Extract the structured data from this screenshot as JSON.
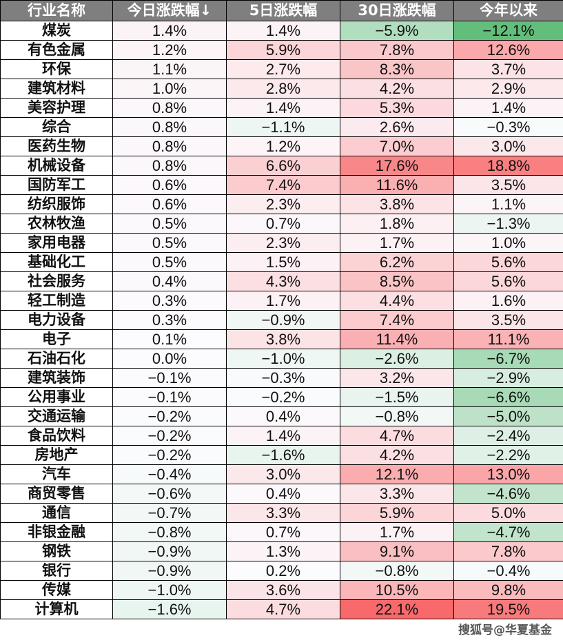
{
  "chart_data": {
    "type": "heatmap",
    "columns": [
      "行业名称",
      "今日涨跌幅↓",
      "5日涨跌幅",
      "30日涨跌幅",
      "今年以来"
    ],
    "color_scale": {
      "negative": "#63be7b",
      "zero": "#fcfcff",
      "positive": "#f8696b"
    },
    "rows": [
      {
        "name": "煤炭",
        "values": [
          "1.4%",
          "1.4%",
          "−5.9%",
          "−12.1%"
        ]
      },
      {
        "name": "有色金属",
        "values": [
          "1.2%",
          "5.9%",
          "7.8%",
          "12.6%"
        ]
      },
      {
        "name": "环保",
        "values": [
          "1.1%",
          "2.7%",
          "8.3%",
          "3.7%"
        ]
      },
      {
        "name": "建筑材料",
        "values": [
          "1.0%",
          "2.8%",
          "4.2%",
          "2.9%"
        ]
      },
      {
        "name": "美容护理",
        "values": [
          "0.8%",
          "1.4%",
          "5.3%",
          "1.4%"
        ]
      },
      {
        "name": "综合",
        "values": [
          "0.8%",
          "−1.1%",
          "2.6%",
          "−0.3%"
        ]
      },
      {
        "name": "医药生物",
        "values": [
          "0.8%",
          "1.2%",
          "7.0%",
          "3.0%"
        ]
      },
      {
        "name": "机械设备",
        "values": [
          "0.8%",
          "6.6%",
          "17.6%",
          "18.8%"
        ]
      },
      {
        "name": "国防军工",
        "values": [
          "0.6%",
          "7.4%",
          "11.6%",
          "3.5%"
        ]
      },
      {
        "name": "纺织服饰",
        "values": [
          "0.6%",
          "2.3%",
          "3.8%",
          "1.1%"
        ]
      },
      {
        "name": "农林牧渔",
        "values": [
          "0.5%",
          "0.7%",
          "1.8%",
          "−1.3%"
        ]
      },
      {
        "name": "家用电器",
        "values": [
          "0.5%",
          "2.3%",
          "1.7%",
          "1.0%"
        ]
      },
      {
        "name": "基础化工",
        "values": [
          "0.5%",
          "1.5%",
          "6.2%",
          "5.6%"
        ]
      },
      {
        "name": "社会服务",
        "values": [
          "0.4%",
          "4.3%",
          "8.5%",
          "5.6%"
        ]
      },
      {
        "name": "轻工制造",
        "values": [
          "0.3%",
          "1.7%",
          "4.4%",
          "1.6%"
        ]
      },
      {
        "name": "电力设备",
        "values": [
          "0.3%",
          "−0.9%",
          "7.4%",
          "3.5%"
        ]
      },
      {
        "name": "电子",
        "values": [
          "0.1%",
          "3.8%",
          "11.4%",
          "11.1%"
        ]
      },
      {
        "name": "石油石化",
        "values": [
          "0.0%",
          "−1.0%",
          "−2.6%",
          "−6.7%"
        ]
      },
      {
        "name": "建筑装饰",
        "values": [
          "−0.1%",
          "−0.3%",
          "3.2%",
          "−2.9%"
        ]
      },
      {
        "name": "公用事业",
        "values": [
          "−0.1%",
          "−0.2%",
          "−1.5%",
          "−6.6%"
        ]
      },
      {
        "name": "交通运输",
        "values": [
          "−0.2%",
          "0.4%",
          "−0.8%",
          "−5.0%"
        ]
      },
      {
        "name": "食品饮料",
        "values": [
          "−0.2%",
          "1.4%",
          "4.7%",
          "−2.4%"
        ]
      },
      {
        "name": "房地产",
        "values": [
          "−0.2%",
          "−1.6%",
          "4.2%",
          "−2.2%"
        ]
      },
      {
        "name": "汽车",
        "values": [
          "−0.4%",
          "3.0%",
          "12.1%",
          "13.0%"
        ]
      },
      {
        "name": "商贸零售",
        "values": [
          "−0.6%",
          "0.4%",
          "3.3%",
          "−4.6%"
        ]
      },
      {
        "name": "通信",
        "values": [
          "−0.7%",
          "3.3%",
          "5.9%",
          "5.0%"
        ]
      },
      {
        "name": "非银金融",
        "values": [
          "−0.8%",
          "0.7%",
          "1.7%",
          "−4.7%"
        ]
      },
      {
        "name": "钢铁",
        "values": [
          "−0.9%",
          "1.3%",
          "9.1%",
          "7.8%"
        ]
      },
      {
        "name": "银行",
        "values": [
          "−0.9%",
          "0.2%",
          "−0.8%",
          "−0.4%"
        ]
      },
      {
        "name": "传媒",
        "values": [
          "−1.0%",
          "3.6%",
          "10.5%",
          "9.8%"
        ]
      },
      {
        "name": "计算机",
        "values": [
          "−1.6%",
          "4.7%",
          "22.1%",
          "19.5%"
        ]
      }
    ]
  },
  "watermark": "搜狐号@华夏基金"
}
